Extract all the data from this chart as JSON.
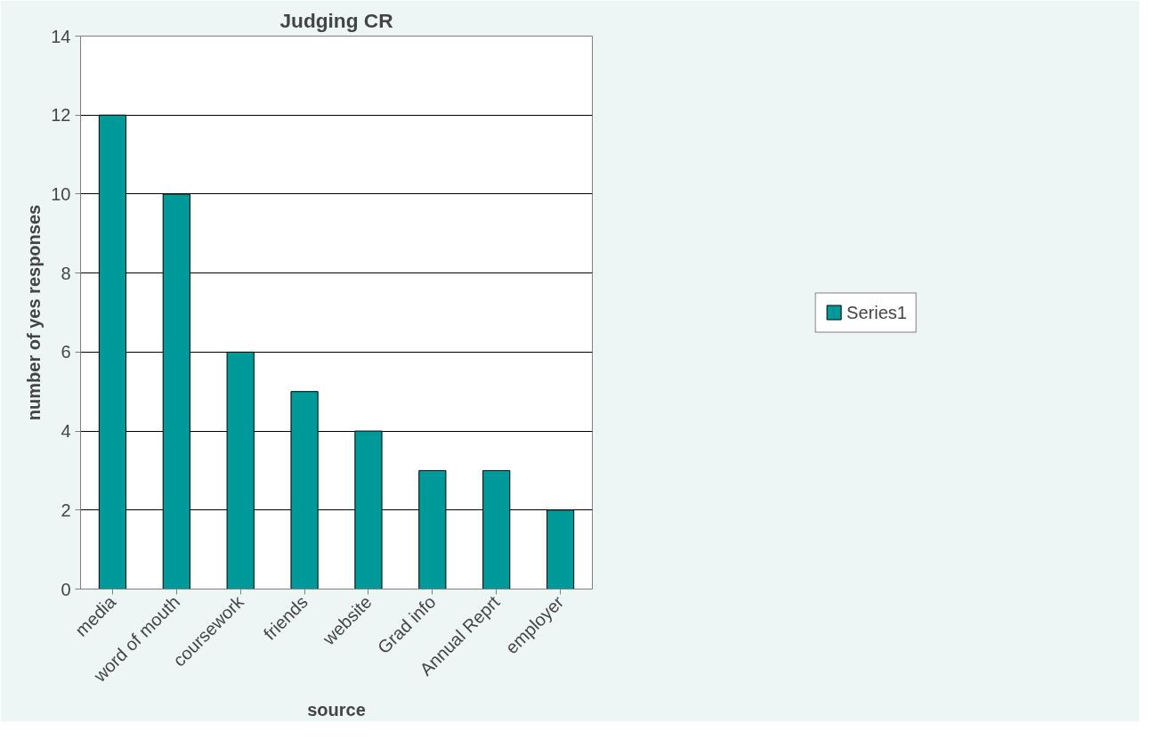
{
  "chart_data": {
    "type": "bar",
    "title": "Judging CR",
    "xlabel": "source",
    "ylabel": "number of yes responses",
    "categories": [
      "media",
      "word of mouth",
      "coursework",
      "friends",
      "website",
      "Grad info",
      "Annual Reprt",
      "employer"
    ],
    "series": [
      {
        "name": "Series1",
        "color": "#009999",
        "values": [
          12,
          10,
          6,
          5,
          4,
          3,
          3,
          2
        ]
      }
    ],
    "ylim": [
      0,
      14
    ],
    "yticks": [
      0,
      2,
      4,
      6,
      8,
      10,
      12,
      14
    ],
    "grid": "y",
    "legend": "right"
  }
}
